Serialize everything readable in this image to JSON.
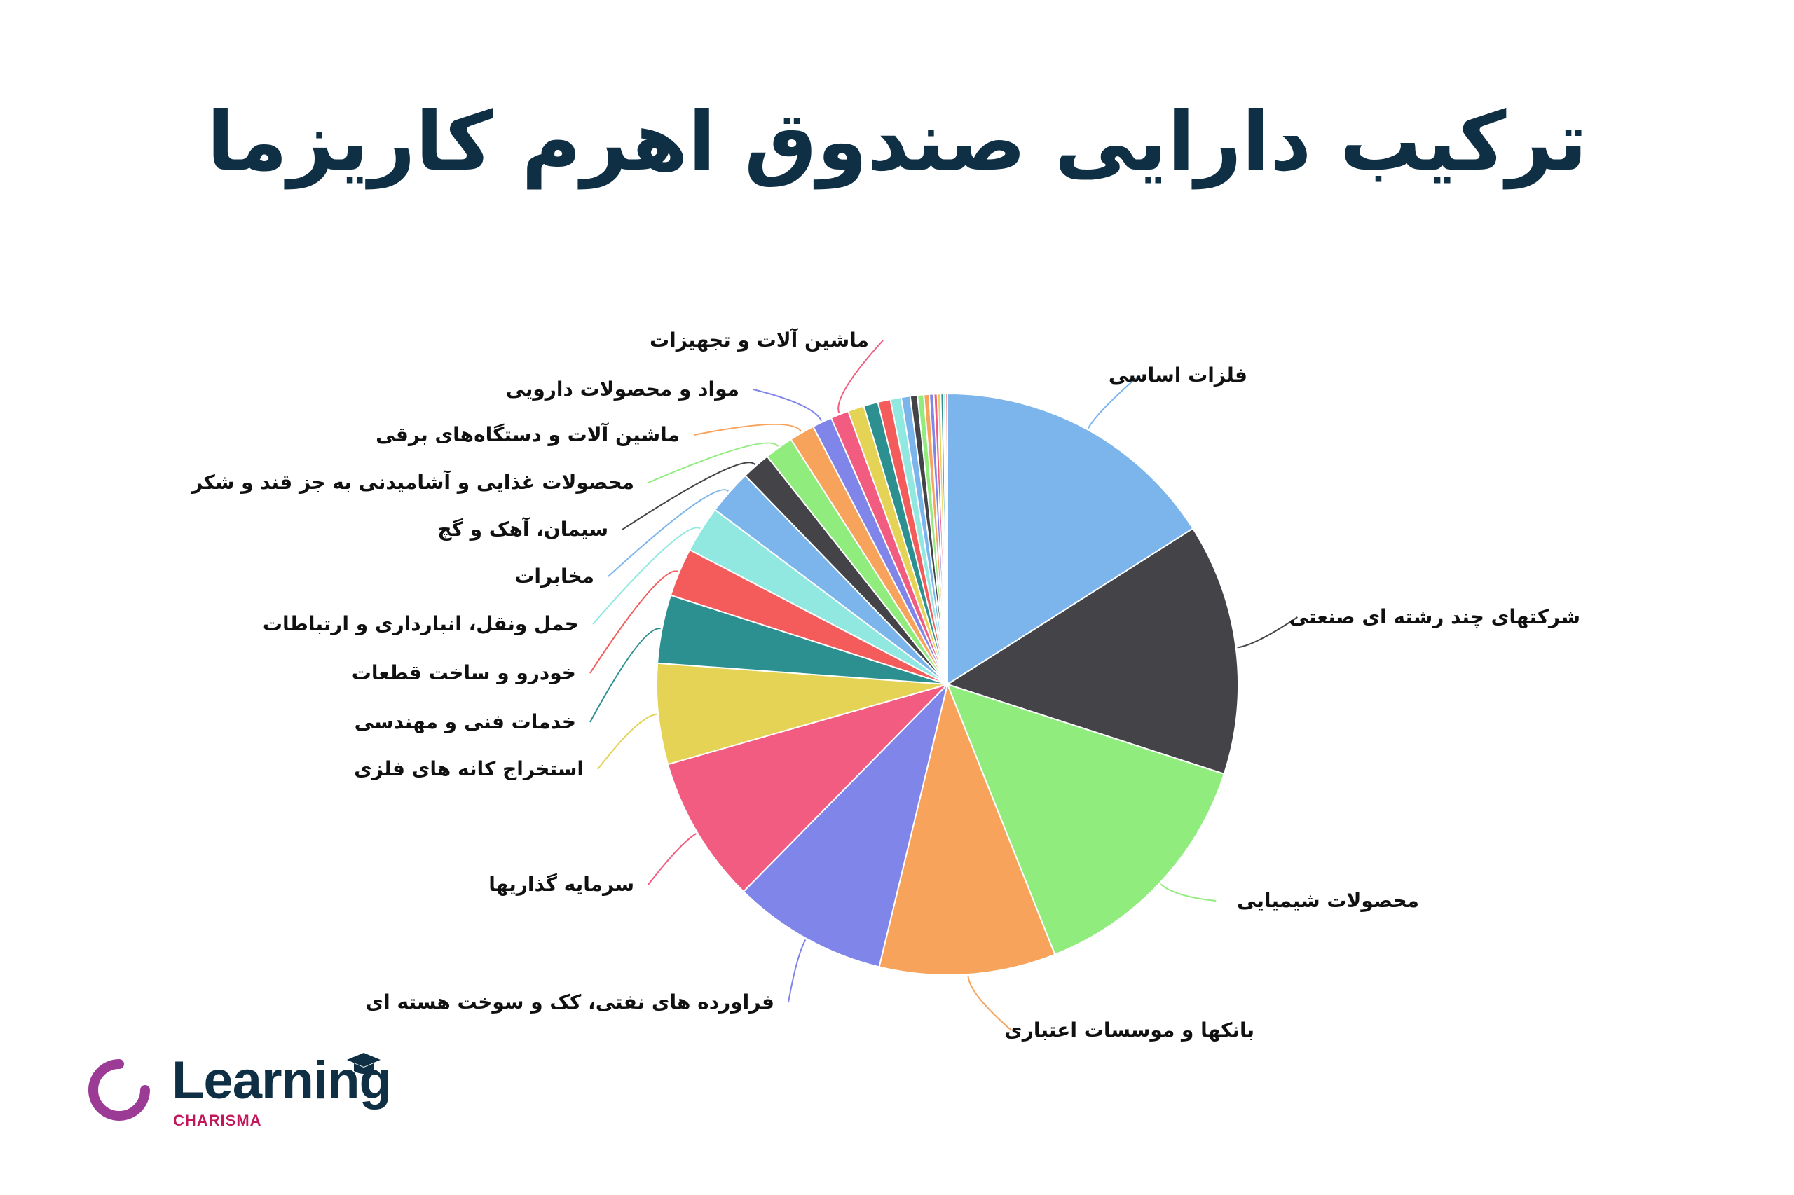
{
  "title": "ترکیب دارایی صندوق اهرم کاریزما",
  "logo": {
    "word": "Learning",
    "sub": "CHARISMA"
  },
  "chart_data": {
    "type": "pie",
    "title": "",
    "start_angle_deg": 0,
    "direction": "clockwise",
    "slices": [
      {
        "label": "فلزات اساسی",
        "value": 16.0,
        "color": "#7cb5ec"
      },
      {
        "label": "شرکتهای چند رشته ای صنعتی",
        "value": 14.0,
        "color": "#434348"
      },
      {
        "label": "محصولات شیمیایی",
        "value": 14.0,
        "color": "#90ed7d"
      },
      {
        "label": "بانکها و موسسات اعتباری",
        "value": 9.8,
        "color": "#f7a35c"
      },
      {
        "label": "فراورده های نفتی، کک و سوخت هسته ای",
        "value": 8.6,
        "color": "#8085e9"
      },
      {
        "label": "سرمایه گذاریها",
        "value": 8.2,
        "color": "#f15c80"
      },
      {
        "label": "استخراج کانه های فلزی",
        "value": 5.6,
        "color": "#e4d354"
      },
      {
        "label": "خدمات فنی و مهندسی",
        "value": 3.8,
        "color": "#2b908f"
      },
      {
        "label": "خودرو و ساخت قطعات",
        "value": 2.7,
        "color": "#f45b5b"
      },
      {
        "label": "حمل ونقل، انبارداری و ارتباطات",
        "value": 2.6,
        "color": "#91e8e1"
      },
      {
        "label": "مخابرات",
        "value": 2.5,
        "color": "#7cb5ec"
      },
      {
        "label": "سیمان، آهک و گچ",
        "value": 1.6,
        "color": "#434348"
      },
      {
        "label": "محصولات غذایی و آشامیدنی به جز قند و شکر",
        "value": 1.6,
        "color": "#90ed7d"
      },
      {
        "label": "ماشین آلات و دستگاه‌های برقی",
        "value": 1.4,
        "color": "#f7a35c"
      },
      {
        "label": "مواد و محصولات دارویی",
        "value": 1.1,
        "color": "#8085e9"
      },
      {
        "label": "ماشین آلات و تجهیزات",
        "value": 1.0,
        "color": "#f15c80"
      },
      {
        "label": "",
        "value": 0.9,
        "color": "#e4d354"
      },
      {
        "label": "",
        "value": 0.8,
        "color": "#2b908f"
      },
      {
        "label": "",
        "value": 0.7,
        "color": "#f45b5b"
      },
      {
        "label": "",
        "value": 0.6,
        "color": "#91e8e1"
      },
      {
        "label": "",
        "value": 0.5,
        "color": "#7cb5ec"
      },
      {
        "label": "",
        "value": 0.4,
        "color": "#434348"
      },
      {
        "label": "",
        "value": 0.35,
        "color": "#90ed7d"
      },
      {
        "label": "",
        "value": 0.3,
        "color": "#f7a35c"
      },
      {
        "label": "",
        "value": 0.25,
        "color": "#8085e9"
      },
      {
        "label": "",
        "value": 0.2,
        "color": "#f15c80"
      },
      {
        "label": "",
        "value": 0.18,
        "color": "#e4d354"
      },
      {
        "label": "",
        "value": 0.15,
        "color": "#2b908f"
      },
      {
        "label": "",
        "value": 0.12,
        "color": "#91e8e1"
      },
      {
        "label": "",
        "value": 0.1,
        "color": "#f45b5b"
      }
    ]
  }
}
